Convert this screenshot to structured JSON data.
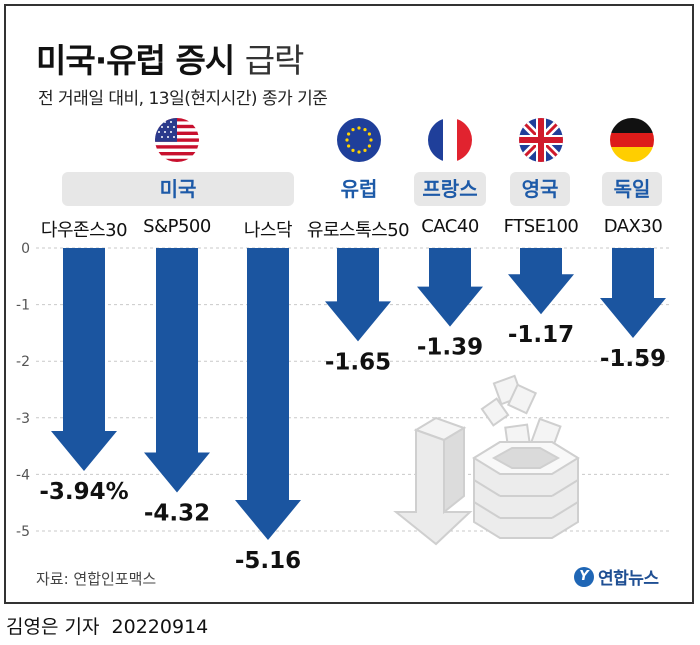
{
  "header": {
    "title_bold": "미국·유럽 증시",
    "title_light": "급락",
    "subtitle": "전 거래일 대비, 13일(현지시간) 종가 기준"
  },
  "regions": {
    "us": "미국",
    "eu": "유럽",
    "fr": "프랑스",
    "uk": "영국",
    "de": "독일"
  },
  "chart_data": {
    "type": "bar",
    "categories": [
      "다우존스30",
      "S&P500",
      "나스닥",
      "유로스톡스50",
      "CAC40",
      "FTSE100",
      "DAX30"
    ],
    "values": [
      -3.94,
      -4.32,
      -5.16,
      -1.65,
      -1.39,
      -1.17,
      -1.59
    ],
    "value_labels": [
      "-3.94%",
      "-4.32",
      "-5.16",
      "-1.65",
      "-1.39",
      "-1.17",
      "-1.59"
    ],
    "ylim": [
      -5,
      0
    ],
    "yticks": [
      "0",
      "-1",
      "-2",
      "-3",
      "-4",
      "-5"
    ],
    "grid": true,
    "bar_color": "#1b55a0"
  },
  "source": "자료: 연합인포맥스",
  "logo": {
    "mark": "Y",
    "text": "연합뉴스"
  },
  "footer": {
    "byline": "김영은 기자",
    "date": "20220914"
  },
  "colors": {
    "accent": "#1d5aa8",
    "band": "#e7e7e7"
  }
}
